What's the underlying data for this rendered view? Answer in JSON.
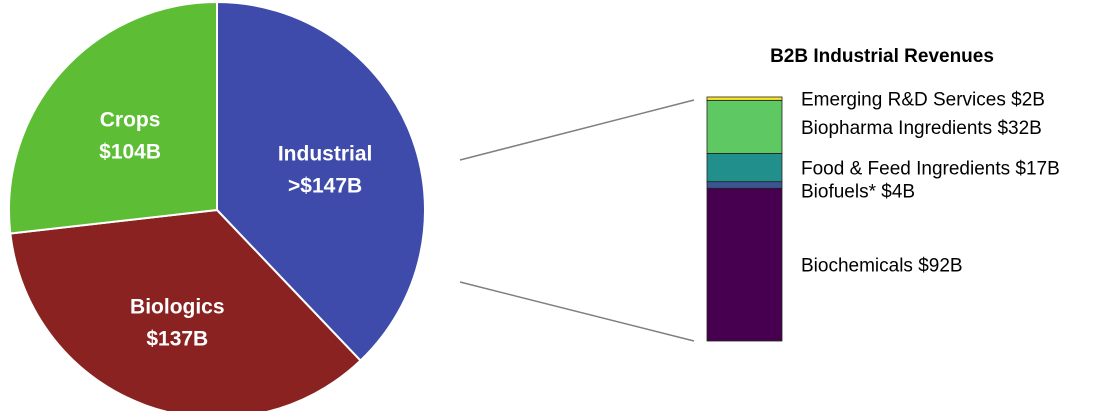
{
  "chart_data": [
    {
      "type": "pie",
      "slices": [
        {
          "name": "Industrial",
          "value_label": ">$147B",
          "value": 147,
          "color": "#3f4baa"
        },
        {
          "name": "Biologics",
          "value_label": "$137B",
          "value": 137,
          "color": "#8b2222"
        },
        {
          "name": "Crops",
          "value_label": "$104B",
          "value": 104,
          "color": "#5dbd35"
        }
      ]
    },
    {
      "type": "bar",
      "stacked": true,
      "title": "B2B Industrial Revenues",
      "segments": [
        {
          "label": "Biochemicals $92B",
          "value": 92,
          "color": "#46004f"
        },
        {
          "label": "Biofuels* $4B",
          "value": 4,
          "color": "#3a5590"
        },
        {
          "label": "Food & Feed Ingredients $17B",
          "value": 17,
          "color": "#21908d"
        },
        {
          "label": "Biopharma Ingredients $32B",
          "value": 32,
          "color": "#5ec962"
        },
        {
          "label": "Emerging R&D Services $2B",
          "value": 2,
          "color": "#fde725"
        }
      ]
    }
  ]
}
